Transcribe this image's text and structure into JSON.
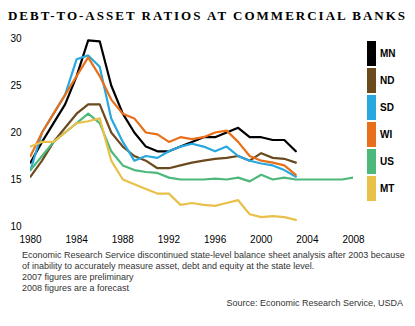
{
  "chart_data": {
    "type": "line",
    "title": "DEBT-TO-ASSET RATIOS AT COMMERCIAL BANKS",
    "notes": [
      "Economic Research Service discontinued state-level balance sheet analysis after 2003 because of inability to accurately measure asset, debt and equity at the state level.",
      "2007 figures are preliminary",
      "2008 figures are a forecast"
    ],
    "source": "Source: Economic Research Service, USDA",
    "x": [
      1980,
      1981,
      1982,
      1983,
      1984,
      1985,
      1986,
      1987,
      1988,
      1989,
      1990,
      1991,
      1992,
      1993,
      1994,
      1995,
      1996,
      1997,
      1998,
      1999,
      2000,
      2001,
      2002,
      2003,
      2004,
      2005,
      2006,
      2007,
      2008
    ],
    "series": [
      {
        "name": "MN",
        "color": "#000000",
        "values": [
          16.8,
          19,
          21,
          23,
          26,
          29.8,
          29.7,
          25,
          22,
          20,
          18.5,
          18,
          18,
          18.5,
          19,
          19.5,
          19.5,
          20,
          20.5,
          19.5,
          19.5,
          19.2,
          19.2,
          18,
          null,
          null,
          null,
          null,
          null
        ]
      },
      {
        "name": "ND",
        "color": "#6b4a1e",
        "values": [
          15.3,
          17,
          19,
          20.5,
          22,
          23,
          23,
          20,
          18.5,
          17.5,
          17,
          16.2,
          16.2,
          16.5,
          16.8,
          17,
          17.2,
          17.3,
          17.5,
          17,
          17.8,
          17.3,
          17.2,
          16.8,
          null,
          null,
          null,
          null,
          null
        ]
      },
      {
        "name": "SD",
        "color": "#29a8e0",
        "values": [
          16,
          20,
          22,
          24,
          27.8,
          28.2,
          27,
          21.5,
          19,
          17,
          17.5,
          17.3,
          18,
          18.5,
          18.8,
          18.5,
          18,
          18.5,
          17.5,
          17,
          16.7,
          16.5,
          16,
          15.3,
          null,
          null,
          null,
          null,
          null
        ]
      },
      {
        "name": "WI",
        "color": "#e8701a",
        "values": [
          17.5,
          20,
          22,
          24,
          26,
          28,
          26,
          23.5,
          22,
          21.5,
          20,
          19.8,
          19,
          19.5,
          19.3,
          19.5,
          20,
          20.2,
          19,
          17.5,
          17,
          16.8,
          16.5,
          15.5,
          null,
          null,
          null,
          null,
          null
        ]
      },
      {
        "name": "US",
        "color": "#4cb87a",
        "values": [
          16,
          17.5,
          19,
          20,
          21,
          22,
          21,
          18,
          16.5,
          16,
          15.8,
          15.7,
          15.2,
          15,
          15,
          15,
          15.1,
          15,
          15.2,
          14.8,
          15.5,
          15,
          15.2,
          15,
          15,
          15,
          15,
          15,
          15.2
        ]
      },
      {
        "name": "MT",
        "color": "#e8c04a",
        "values": [
          18.5,
          19,
          19,
          20,
          21,
          21.2,
          21.5,
          17,
          15,
          14.5,
          14,
          13.5,
          13.5,
          12.3,
          12.5,
          12.3,
          12.2,
          12.5,
          12.8,
          11.3,
          11,
          11.1,
          11,
          10.7,
          null,
          null,
          null,
          null,
          null
        ]
      }
    ],
    "xlim": [
      1980,
      2008
    ],
    "xticks": [
      1980,
      1984,
      1988,
      1992,
      1996,
      2000,
      2004,
      2008
    ],
    "ylim": [
      10,
      30
    ],
    "yticks": [
      10,
      15,
      20,
      25,
      30
    ],
    "grid": false,
    "legend": "right"
  }
}
